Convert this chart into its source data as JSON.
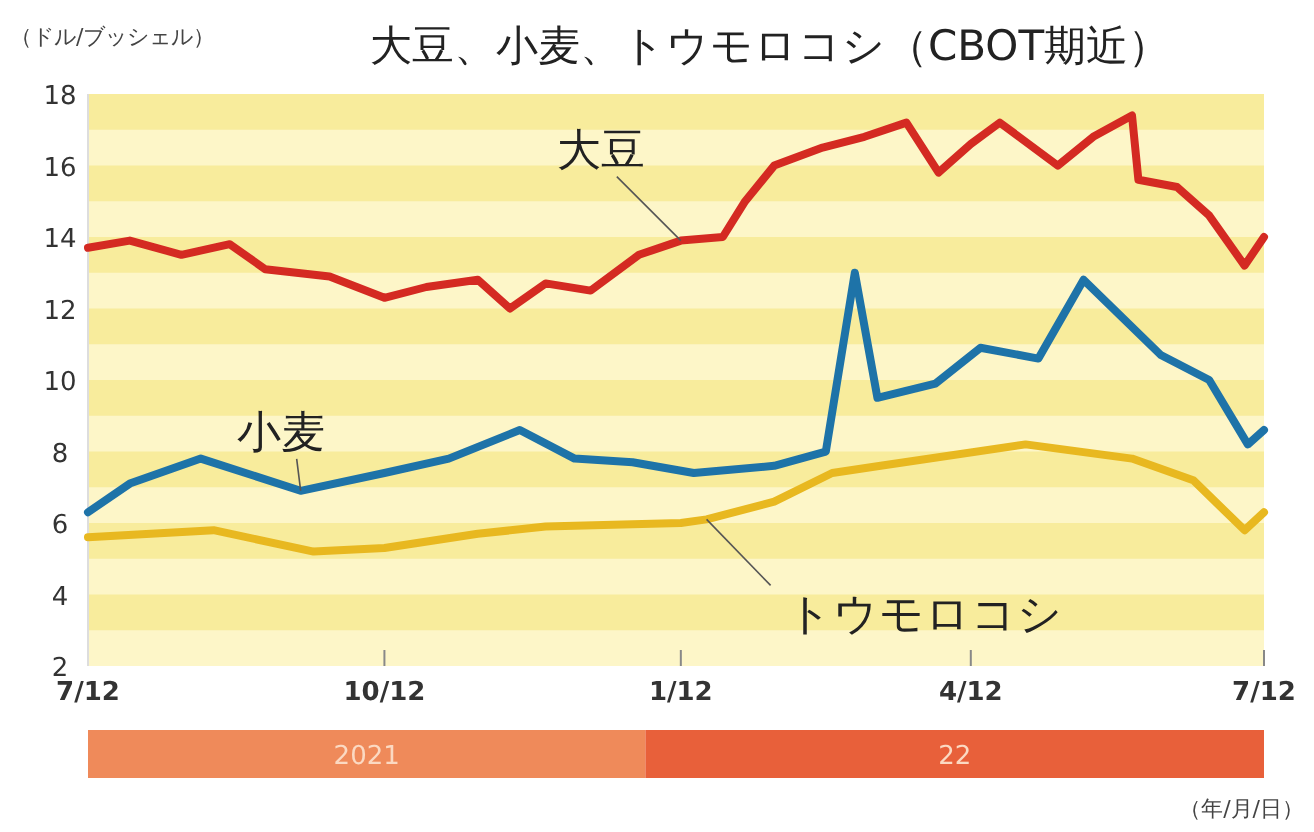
{
  "chart_data": {
    "type": "line",
    "title": "大豆、小麦、トウモロコシ（CBOT期近）",
    "ylabel": "（ドル/ブッシェル）",
    "xlabel": "（年/月/日）",
    "annotations": [
      "2021",
      "22"
    ],
    "xlim": [
      "2021-07-12",
      "2022-07-12"
    ],
    "xticks": [
      {
        "value": "2021-07-12",
        "label": "7/12"
      },
      {
        "value": "2021-10-12",
        "label": "10/12"
      },
      {
        "value": "2022-01-12",
        "label": "1/12"
      },
      {
        "value": "2022-04-12",
        "label": "4/12"
      },
      {
        "value": "2022-07-12",
        "label": "7/12"
      }
    ],
    "ylim": [
      2,
      18
    ],
    "yticks": [
      2,
      4,
      6,
      8,
      10,
      12,
      14,
      16,
      18
    ],
    "bands": [
      {
        "axis": "y",
        "from": 17,
        "to": 18,
        "color": "#f8ec9c"
      },
      {
        "axis": "y",
        "from": 15,
        "to": 16,
        "color": "#f8ec9c"
      },
      {
        "axis": "y",
        "from": 13,
        "to": 14,
        "color": "#f8ec9c"
      },
      {
        "axis": "y",
        "from": 11,
        "to": 12,
        "color": "#f8ec9c"
      },
      {
        "axis": "y",
        "from": 9,
        "to": 10,
        "color": "#f8ec9c"
      },
      {
        "axis": "y",
        "from": 7,
        "to": 8,
        "color": "#f8ec9c"
      },
      {
        "axis": "y",
        "from": 5,
        "to": 6,
        "color": "#f8ec9c"
      },
      {
        "axis": "y",
        "from": 3,
        "to": 4,
        "color": "#f8ec9c"
      }
    ],
    "series": [
      {
        "name": "大豆",
        "color": "#d42a22",
        "x": [
          "2021-07-12",
          "2021-07-25",
          "2021-08-10",
          "2021-08-25",
          "2021-09-05",
          "2021-09-25",
          "2021-10-12",
          "2021-10-25",
          "2021-11-10",
          "2021-11-20",
          "2021-12-01",
          "2021-12-15",
          "2021-12-30",
          "2022-01-12",
          "2022-01-25",
          "2022-02-01",
          "2022-02-10",
          "2022-02-25",
          "2022-03-10",
          "2022-03-23",
          "2022-04-02",
          "2022-04-12",
          "2022-04-21",
          "2022-05-09",
          "2022-05-20",
          "2022-06-01",
          "2022-06-03",
          "2022-06-15",
          "2022-06-25",
          "2022-07-06",
          "2022-07-12"
        ],
        "values": [
          13.7,
          13.9,
          13.5,
          13.8,
          13.1,
          12.9,
          12.3,
          12.6,
          12.8,
          12.0,
          12.7,
          12.5,
          13.5,
          13.9,
          14.0,
          15.0,
          16.0,
          16.5,
          16.8,
          17.2,
          15.8,
          16.6,
          17.2,
          16.0,
          16.8,
          17.4,
          15.6,
          15.4,
          14.6,
          13.2,
          14.0
        ]
      },
      {
        "name": "小麦",
        "color": "#1e73a8",
        "x": [
          "2021-07-12",
          "2021-07-25",
          "2021-08-16",
          "2021-09-16",
          "2021-10-12",
          "2021-11-01",
          "2021-11-23",
          "2021-12-10",
          "2021-12-28",
          "2022-01-16",
          "2022-02-10",
          "2022-02-26",
          "2022-03-07",
          "2022-03-14",
          "2022-04-01",
          "2022-04-15",
          "2022-05-03",
          "2022-05-17",
          "2022-06-10",
          "2022-06-25",
          "2022-07-07",
          "2022-07-12"
        ],
        "values": [
          6.3,
          7.1,
          7.8,
          6.9,
          7.4,
          7.8,
          8.6,
          7.8,
          7.7,
          7.4,
          7.6,
          8.0,
          13.0,
          9.5,
          9.9,
          10.9,
          10.6,
          12.8,
          10.7,
          10.0,
          8.2,
          8.6
        ]
      },
      {
        "name": "トウモロコシ",
        "color": "#e8b820",
        "x": [
          "2021-07-12",
          "2021-08-20",
          "2021-09-20",
          "2021-10-12",
          "2021-11-10",
          "2021-12-01",
          "2022-01-12",
          "2022-01-20",
          "2022-02-10",
          "2022-02-28",
          "2022-03-15",
          "2022-04-29",
          "2022-06-01",
          "2022-06-20",
          "2022-07-06",
          "2022-07-12"
        ],
        "values": [
          5.6,
          5.8,
          5.2,
          5.3,
          5.7,
          5.9,
          6.0,
          6.1,
          6.6,
          7.4,
          7.6,
          8.2,
          7.8,
          7.2,
          5.8,
          6.3
        ]
      }
    ]
  }
}
